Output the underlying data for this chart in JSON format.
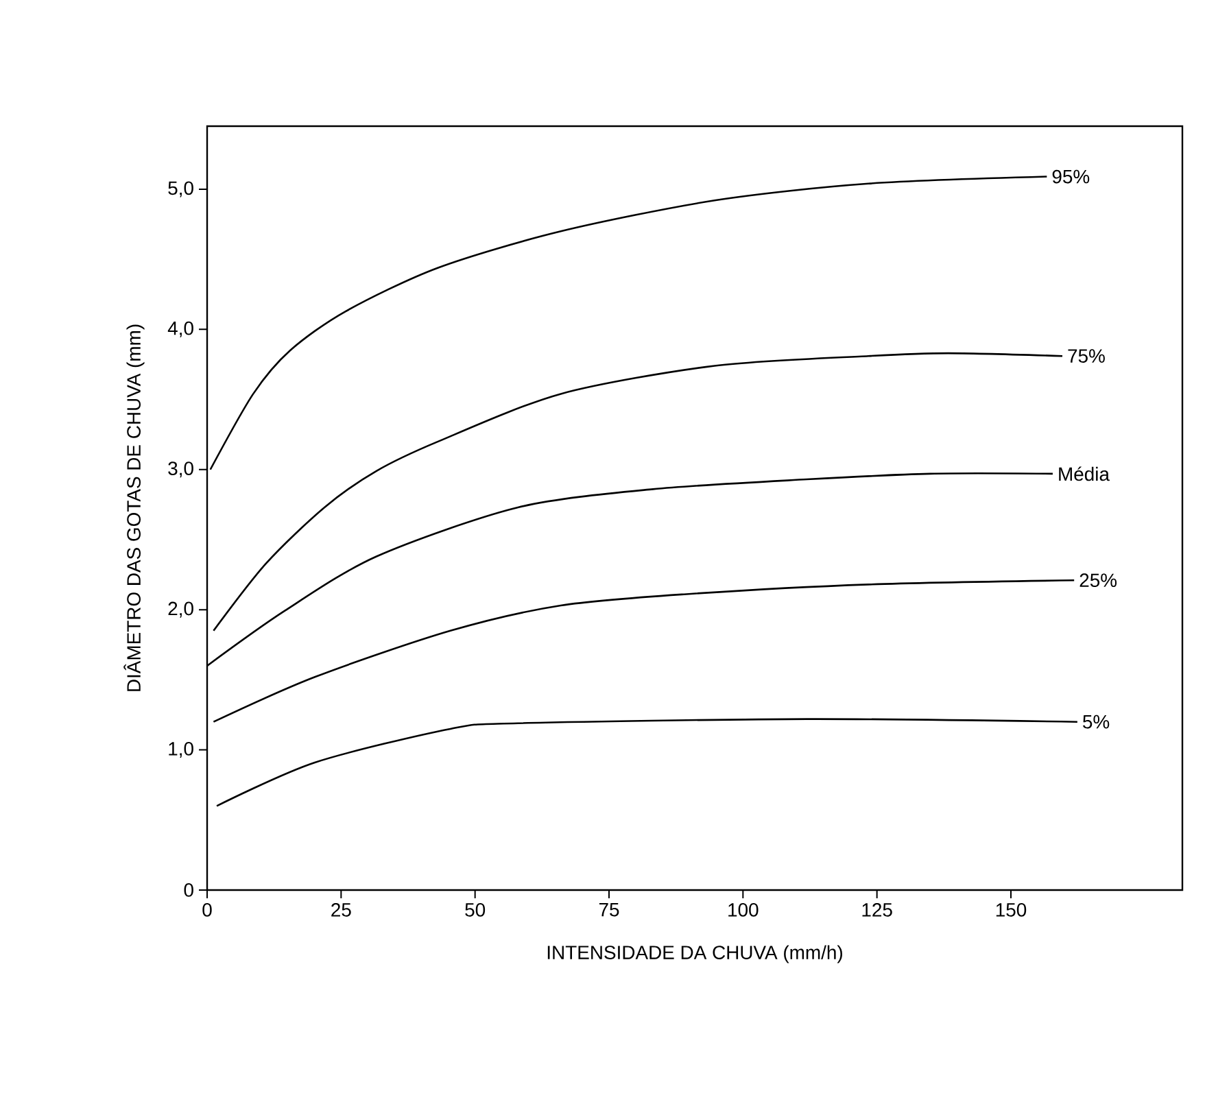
{
  "chart_data": {
    "type": "line",
    "xlabel": "INTENSIDADE DA CHUVA (mm/h)",
    "ylabel": "DIÂMETRO DAS GOTAS DE CHUVA (mm)",
    "xlim": [
      0,
      182
    ],
    "ylim": [
      0,
      5.45
    ],
    "xticks": [
      0,
      25,
      50,
      75,
      100,
      125,
      150
    ],
    "yticks": [
      0,
      {
        "value": 1,
        "label": "1,0"
      },
      {
        "value": 2,
        "label": "2,0"
      },
      {
        "value": 3,
        "label": "3,0"
      },
      {
        "value": 4,
        "label": "4,0"
      },
      {
        "value": 5,
        "label": "5,0"
      }
    ],
    "grid": false,
    "legend": false,
    "marker": "none",
    "line_style": "solid",
    "series": [
      {
        "name": "95%",
        "color": "#000000",
        "x": [
          0.6,
          8.6,
          15.5,
          25.9,
          43.1,
          66,
          94.7,
          123.4,
          156.7
        ],
        "values": [
          3.0,
          3.54,
          3.85,
          4.13,
          4.44,
          4.7,
          4.92,
          5.04,
          5.09
        ]
      },
      {
        "name": "75%",
        "color": "#000000",
        "x": [
          1.2,
          11,
          21.9,
          31.6,
          43.1,
          66,
          94.7,
          123.4,
          138.3,
          159.6
        ],
        "values": [
          1.85,
          2.33,
          2.73,
          2.99,
          3.2,
          3.54,
          3.74,
          3.81,
          3.83,
          3.81
        ]
      },
      {
        "name": "Média",
        "color": "#000000",
        "x": [
          0,
          14.4,
          31.6,
          58,
          83.2,
          111.9,
          134.9,
          157.8
        ],
        "values": [
          1.6,
          1.99,
          2.38,
          2.73,
          2.86,
          2.93,
          2.97,
          2.97
        ]
      },
      {
        "name": "25%",
        "color": "#000000",
        "x": [
          1.2,
          20.1,
          45.4,
          66,
          89,
          123.4,
          161.8
        ],
        "values": [
          1.2,
          1.52,
          1.85,
          2.03,
          2.11,
          2.18,
          2.21
        ]
      },
      {
        "name": "5%",
        "color": "#000000",
        "x": [
          1.8,
          20.1,
          45.4,
          58,
          111.9,
          162.4
        ],
        "values": [
          0.6,
          0.91,
          1.15,
          1.19,
          1.22,
          1.2
        ]
      }
    ]
  }
}
